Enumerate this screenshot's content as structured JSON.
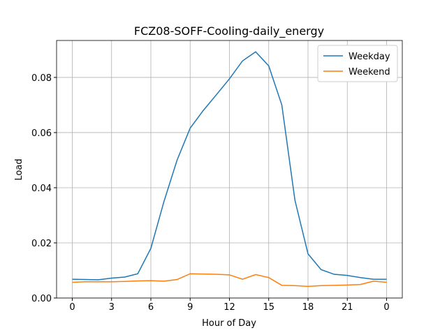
{
  "chart_data": {
    "type": "line",
    "title": "FCZ08-SOFF-Cooling-daily_energy",
    "x_label": "Hour of Day",
    "y_label": "Load",
    "x": [
      0,
      1,
      2,
      3,
      4,
      5,
      6,
      7,
      8,
      9,
      10,
      11,
      12,
      13,
      14,
      15,
      16,
      17,
      18,
      19,
      20,
      21,
      22,
      23,
      24
    ],
    "series": [
      {
        "name": "Weekday",
        "color": "#1f77b4",
        "values": [
          0.0068,
          0.0067,
          0.0066,
          0.0072,
          0.0076,
          0.0088,
          0.018,
          0.035,
          0.05,
          0.0616,
          0.068,
          0.0737,
          0.0795,
          0.086,
          0.0893,
          0.0842,
          0.07,
          0.0355,
          0.016,
          0.0103,
          0.0086,
          0.0082,
          0.0074,
          0.0068,
          0.0068
        ]
      },
      {
        "name": "Weekend",
        "color": "#ff7f0e",
        "values": [
          0.0057,
          0.0059,
          0.0059,
          0.0059,
          0.006,
          0.0062,
          0.0063,
          0.0061,
          0.0067,
          0.0088,
          0.0087,
          0.0086,
          0.0084,
          0.0068,
          0.0085,
          0.0074,
          0.0046,
          0.0045,
          0.0042,
          0.0045,
          0.0046,
          0.0047,
          0.0049,
          0.0061,
          0.0057
        ]
      }
    ],
    "xlim": [
      -1.2,
      25.2
    ],
    "ylim": [
      0,
      0.0934
    ],
    "xticks": [
      0,
      3,
      6,
      9,
      12,
      15,
      18,
      21,
      {
        "value": 24,
        "label": "0"
      }
    ],
    "yticks": [
      {
        "value": 0,
        "label": "0.00"
      },
      0.02,
      0.04,
      0.06,
      0.08
    ],
    "grid": true,
    "legend": "upper right"
  }
}
